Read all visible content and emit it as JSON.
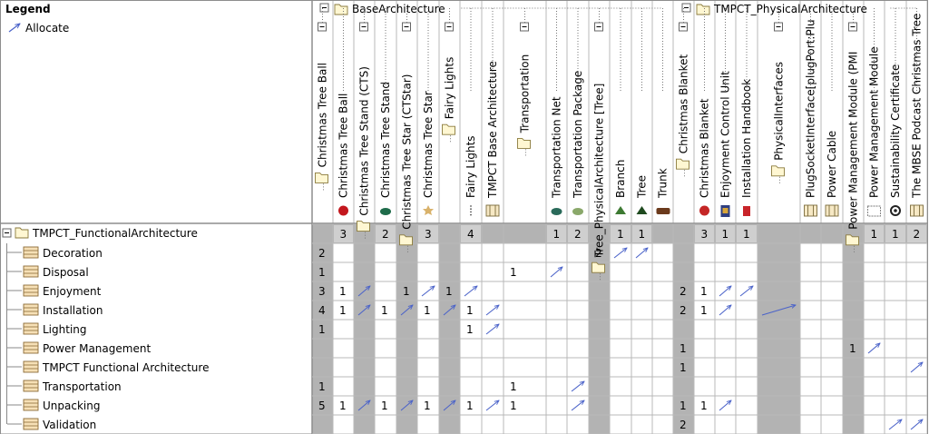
{
  "legend": {
    "title": "Legend",
    "items": [
      {
        "label": "Allocate",
        "icon": "allocate-arrow-icon",
        "color": "#4b63c9"
      }
    ]
  },
  "packages": [
    {
      "label": "BaseArchitecture",
      "icon": "folder-icon"
    },
    {
      "label": "TMPCT_PhysicalArchitecture",
      "icon": "folder-icon"
    }
  ],
  "columns": [
    {
      "kind": "folder",
      "label": "Christmas Tree Ball",
      "icon": "folder-icon",
      "total": ""
    },
    {
      "kind": "leaf",
      "label": "Christmas Tree Ball",
      "icon": "ornament-ball-icon",
      "total": "3"
    },
    {
      "kind": "folder",
      "label": "Christmas Tree Stand (CTS)",
      "icon": "folder-icon",
      "total": ""
    },
    {
      "kind": "leaf",
      "label": "Christmas Tree Stand",
      "icon": "tree-stand-icon",
      "total": "2"
    },
    {
      "kind": "folder",
      "label": "Christmas Tree Star (CTStar)",
      "icon": "folder-icon",
      "total": ""
    },
    {
      "kind": "leaf",
      "label": "Christmas Tree Star",
      "icon": "star-icon",
      "total": "3"
    },
    {
      "kind": "folder",
      "label": "Fairy Lights",
      "icon": "folder-icon",
      "total": ""
    },
    {
      "kind": "leaf",
      "label": "Fairy Lights",
      "icon": "lights-icon",
      "total": "4"
    },
    {
      "kind": "leaf",
      "label": "TMPCT Base Architecture",
      "icon": "block-icon",
      "total": ""
    },
    {
      "kind": "folder",
      "label": "Transportation",
      "icon": "folder-icon",
      "total": ""
    },
    {
      "kind": "leaf",
      "label": "Transportation Net",
      "icon": "net-icon",
      "total": "1"
    },
    {
      "kind": "leaf",
      "label": "Transportation Package",
      "icon": "package-icon",
      "total": "2"
    },
    {
      "kind": "folder",
      "label": "Tree_PhysicalArchitecture [Tree]",
      "icon": "folder-icon",
      "total": ""
    },
    {
      "kind": "leaf",
      "label": "Branch",
      "icon": "branch-icon",
      "total": "1"
    },
    {
      "kind": "leaf",
      "label": "Tree",
      "icon": "fir-tree-icon",
      "total": "1"
    },
    {
      "kind": "leaf",
      "label": "Trunk",
      "icon": "trunk-icon",
      "total": ""
    },
    {
      "kind": "folder",
      "label": "Christmas Blanket",
      "icon": "folder-icon",
      "total": ""
    },
    {
      "kind": "leaf",
      "label": "Christmas Blanket",
      "icon": "blanket-icon",
      "total": "3"
    },
    {
      "kind": "leaf",
      "label": "Enjoyment Control Unit",
      "icon": "control-unit-icon",
      "total": "1"
    },
    {
      "kind": "leaf",
      "label": "Installation Handbook",
      "icon": "handbook-icon",
      "total": "1"
    },
    {
      "kind": "folder",
      "label": "PhysicalInterfaces",
      "icon": "folder-icon",
      "total": ""
    },
    {
      "kind": "leaf",
      "label": "PlugSocketInterface[plugPort:Plu",
      "icon": "interface-block-icon",
      "total": ""
    },
    {
      "kind": "leaf",
      "label": "Power Cable",
      "icon": "interface-block-icon",
      "total": ""
    },
    {
      "kind": "folder",
      "label": "Power Management Module (PMI",
      "icon": "folder-icon",
      "total": ""
    },
    {
      "kind": "leaf",
      "label": "Power Management Module",
      "icon": "module-icon",
      "total": "1"
    },
    {
      "kind": "leaf",
      "label": "Sustainability Certificate",
      "icon": "certificate-icon",
      "total": "1"
    },
    {
      "kind": "leaf",
      "label": "The MBSE Podcast Christmas Tree",
      "icon": "block-icon",
      "total": "2"
    }
  ],
  "root_row": {
    "label": "TMPCT_FunctionalArchitecture",
    "icon": "folder-icon",
    "expand_symbol": "−"
  },
  "rows": [
    {
      "label": "Decoration",
      "icon": "activity-block-icon",
      "cells": [
        "2",
        "",
        "",
        "",
        "",
        "",
        "",
        "",
        "",
        "",
        "",
        "",
        "2",
        "A",
        "A",
        "",
        "",
        "",
        "",
        "",
        "",
        "",
        "",
        "",
        "",
        "",
        ""
      ]
    },
    {
      "label": "Disposal",
      "icon": "activity-block-icon",
      "cells": [
        "1",
        "",
        "",
        "",
        "",
        "",
        "",
        "",
        "",
        "1",
        "A",
        "",
        "",
        "",
        "",
        "",
        "",
        "",
        "",
        "",
        "",
        "",
        "",
        "",
        "",
        "",
        ""
      ]
    },
    {
      "label": "Enjoyment",
      "icon": "activity-block-icon",
      "cells": [
        "3",
        "1",
        "A",
        "",
        "1",
        "A",
        "1",
        "A",
        "",
        "",
        "",
        "",
        "",
        "",
        "",
        "",
        "2",
        "1",
        "A",
        "A",
        "",
        "",
        "",
        "",
        "",
        "",
        ""
      ]
    },
    {
      "label": "Installation",
      "icon": "activity-block-icon",
      "cells": [
        "4",
        "1",
        "A",
        "1",
        "A",
        "1",
        "A",
        "1",
        "A",
        "",
        "",
        "",
        "",
        "",
        "",
        "",
        "2",
        "1",
        "A",
        "",
        "A",
        "",
        "",
        "",
        "",
        "",
        ""
      ]
    },
    {
      "label": "Lighting",
      "icon": "activity-block-icon",
      "cells": [
        "1",
        "",
        "",
        "",
        "",
        "",
        "",
        "1",
        "A",
        "",
        "",
        "",
        "",
        "",
        "",
        "",
        "",
        "",
        "",
        "",
        "",
        "",
        "",
        "",
        "",
        "",
        ""
      ]
    },
    {
      "label": "Power Management",
      "icon": "activity-block-icon",
      "cells": [
        "",
        "",
        "",
        "",
        "",
        "",
        "",
        "",
        "",
        "",
        "",
        "",
        "",
        "",
        "",
        "",
        "1",
        "",
        "",
        "",
        "",
        "",
        "",
        "1",
        "A",
        "",
        ""
      ]
    },
    {
      "label": "TMPCT Functional Architecture",
      "icon": "activity-block-icon",
      "cells": [
        "",
        "",
        "",
        "",
        "",
        "",
        "",
        "",
        "",
        "",
        "",
        "",
        "",
        "",
        "",
        "",
        "1",
        "",
        "",
        "",
        "",
        "",
        "",
        "",
        "",
        "",
        "A"
      ]
    },
    {
      "label": "Transportation",
      "icon": "activity-block-icon",
      "cells": [
        "1",
        "",
        "",
        "",
        "",
        "",
        "",
        "",
        "",
        "1",
        "",
        "A",
        "",
        "",
        "",
        "",
        "",
        "",
        "",
        "",
        "",
        "",
        "",
        "",
        "",
        "",
        ""
      ]
    },
    {
      "label": "Unpacking",
      "icon": "activity-block-icon",
      "cells": [
        "5",
        "1",
        "A",
        "1",
        "A",
        "1",
        "A",
        "1",
        "A",
        "1",
        "",
        "A",
        "",
        "",
        "",
        "",
        "1",
        "1",
        "A",
        "",
        "",
        "",
        "",
        "",
        "",
        "",
        ""
      ]
    },
    {
      "label": "Validation",
      "icon": "activity-block-icon",
      "cells": [
        "",
        "",
        "",
        "",
        "",
        "",
        "",
        "",
        "",
        "",
        "",
        "",
        "",
        "",
        "",
        "",
        "2",
        "",
        "",
        "",
        "",
        "",
        "",
        "",
        "",
        "A",
        "A"
      ]
    }
  ],
  "colors": {
    "grid_line": "#b9b9b9",
    "gray_cell": "#b3b3b3",
    "total_cell": "#cfcfcf",
    "arrow": "#4b63c9",
    "folder_fill": "#fff7d2",
    "folder_stroke": "#8a7a3c"
  }
}
